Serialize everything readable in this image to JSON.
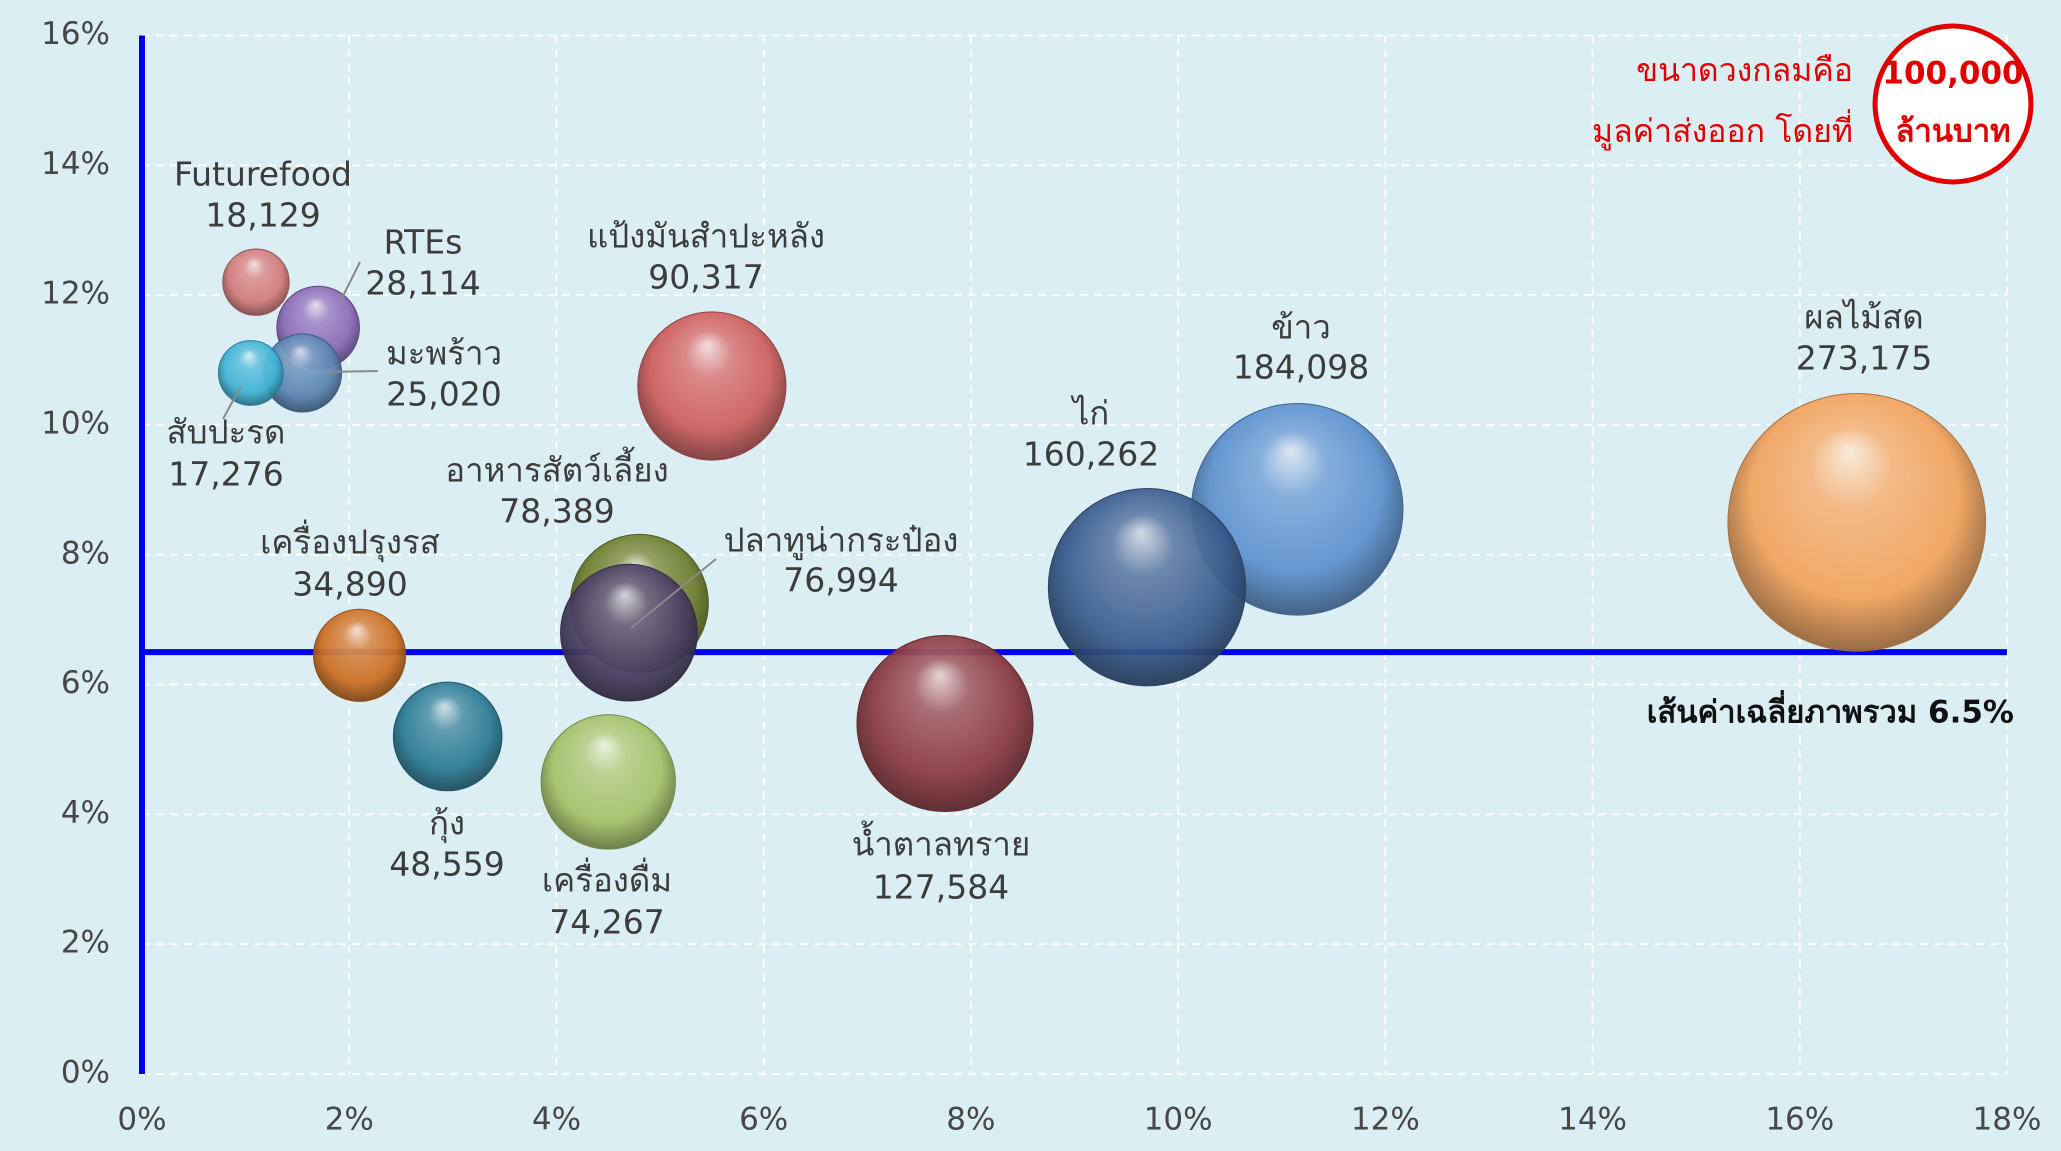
{
  "chart_data": {
    "type": "scatter",
    "marker": "bubble",
    "xlim": [
      0,
      18
    ],
    "ylim": [
      0,
      16
    ],
    "grid": true,
    "x_ticks": [
      {
        "value": 0,
        "label": "0%"
      },
      {
        "value": 2,
        "label": "2%"
      },
      {
        "value": 4,
        "label": "4%"
      },
      {
        "value": 6,
        "label": "6%"
      },
      {
        "value": 8,
        "label": "8%"
      },
      {
        "value": 10,
        "label": "10%"
      },
      {
        "value": 12,
        "label": "12%"
      },
      {
        "value": 14,
        "label": "14%"
      },
      {
        "value": 16,
        "label": "16%"
      },
      {
        "value": 18,
        "label": "18%"
      }
    ],
    "y_ticks": [
      {
        "value": 0,
        "label": "0%"
      },
      {
        "value": 2,
        "label": "2%"
      },
      {
        "value": 4,
        "label": "4%"
      },
      {
        "value": 6,
        "label": "6%"
      },
      {
        "value": 8,
        "label": "8%"
      },
      {
        "value": 10,
        "label": "10%"
      },
      {
        "value": 12,
        "label": "12%"
      },
      {
        "value": 14,
        "label": "14%"
      },
      {
        "value": 16,
        "label": "16%"
      }
    ],
    "points": [
      {
        "name": "Futurefood",
        "value_label": "18,129",
        "size": 18129,
        "x": 1.1,
        "y": 12.2,
        "color": "#d47a7a"
      },
      {
        "name": "RTEs",
        "value_label": "28,114",
        "size": 28114,
        "x": 1.7,
        "y": 11.5,
        "color": "#8c6bb8"
      },
      {
        "name": "มะพร้าว",
        "value_label": "25,020",
        "size": 25020,
        "x": 1.55,
        "y": 10.8,
        "color": "#5a84b4"
      },
      {
        "name": "สับปะรด",
        "value_label": "17,276",
        "size": 17276,
        "x": 1.05,
        "y": 10.8,
        "color": "#3fb3d6"
      },
      {
        "name": "แป้งมันสำปะหลัง",
        "value_label": "90,317",
        "size": 90317,
        "x": 5.5,
        "y": 10.6,
        "color": "#cf5f5f"
      },
      {
        "name": "อาหารสัตว์เลี้ยง",
        "value_label": "78,389",
        "size": 78389,
        "x": 4.8,
        "y": 7.25,
        "color": "#6f7f2f"
      },
      {
        "name": "ปลาทูน่ากระป๋อง",
        "value_label": "76,994",
        "size": 76994,
        "x": 4.7,
        "y": 6.8,
        "color": "#4b3f63"
      },
      {
        "name": "เครื่องปรุงรส",
        "value_label": "34,890",
        "size": 34890,
        "x": 2.1,
        "y": 6.45,
        "color": "#cc6f22"
      },
      {
        "name": "กุ้ง",
        "value_label": "48,559",
        "size": 48559,
        "x": 2.95,
        "y": 5.2,
        "color": "#2c7b95"
      },
      {
        "name": "เครื่องดื่ม",
        "value_label": "74,267",
        "size": 74267,
        "x": 4.5,
        "y": 4.5,
        "color": "#a5c26a"
      },
      {
        "name": "น้ำตาลทราย",
        "value_label": "127,584",
        "size": 127584,
        "x": 7.75,
        "y": 5.4,
        "color": "#8c3a42"
      },
      {
        "name": "ข้าว",
        "value_label": "184,098",
        "size": 184098,
        "x": 11.15,
        "y": 8.7,
        "color": "#5e92cf"
      },
      {
        "name": "ไก่",
        "value_label": "160,262",
        "size": 160262,
        "x": 9.7,
        "y": 7.5,
        "color": "#3a5d8f"
      },
      {
        "name": "ผลไม้สด",
        "value_label": "273,175",
        "size": 273175,
        "x": 16.55,
        "y": 8.5,
        "color": "#f2a35e"
      }
    ],
    "reference_line": {
      "y": 6.5,
      "label": "เส้นค่าเฉลี่ยภาพรวม 6.5%",
      "color": "#0000ee"
    },
    "size_legend": {
      "line1": "ขนาดวงกลมคือ",
      "line2": "มูลค่าส่งออก โดยที่",
      "circle_line1": "100,000",
      "circle_line2": "ล้านบาท",
      "size": 100000,
      "color": "#e00000"
    },
    "colors": {
      "background": "#daeef3",
      "grid": "#ffffff",
      "axis_line": "#0000ee",
      "leader_line": "#8a8a8a"
    }
  }
}
